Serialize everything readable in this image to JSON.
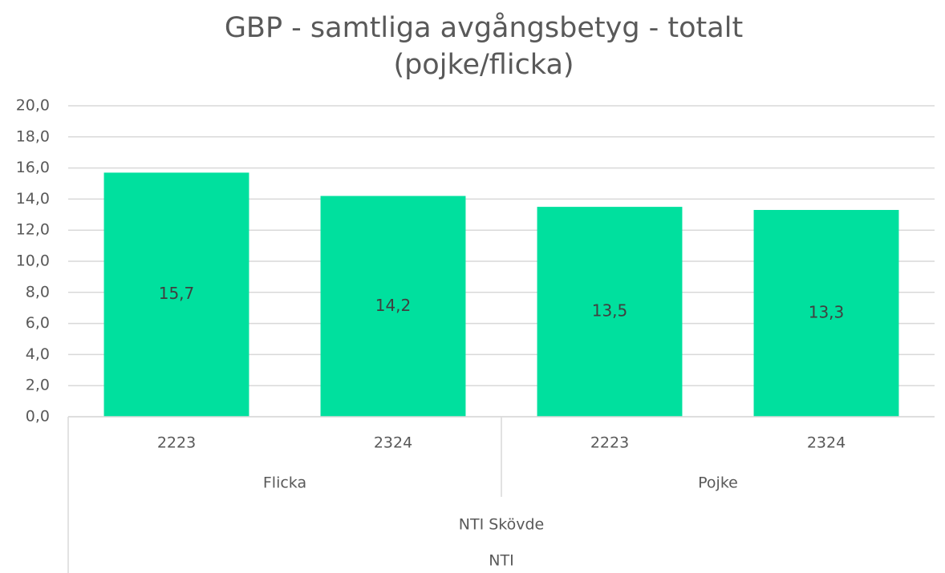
{
  "chart_data": {
    "type": "bar",
    "title": [
      "GBP - samtliga avgångsbetyg - totalt",
      "(pojke/flicka)"
    ],
    "groups": [
      {
        "name": "Flicka",
        "categories": [
          "2223",
          "2324"
        ]
      },
      {
        "name": "Pojke",
        "categories": [
          "2223",
          "2324"
        ]
      }
    ],
    "outer_groups": [
      "NTI Skövde",
      "NTI"
    ],
    "values": [
      15.7,
      14.2,
      13.5,
      13.3
    ],
    "value_labels": [
      "15,7",
      "14,2",
      "13,5",
      "13,3"
    ],
    "color": "#00e09e",
    "ylim": [
      0,
      20
    ],
    "yticks": [
      {
        "value": 0,
        "label": "0,0"
      },
      {
        "value": 2,
        "label": "2,0"
      },
      {
        "value": 4,
        "label": "4,0"
      },
      {
        "value": 6,
        "label": "6,0"
      },
      {
        "value": 8,
        "label": "8,0"
      },
      {
        "value": 10,
        "label": "10,0"
      },
      {
        "value": 12,
        "label": "12,0"
      },
      {
        "value": 14,
        "label": "14,0"
      },
      {
        "value": 16,
        "label": "16,0"
      },
      {
        "value": 18,
        "label": "18,0"
      },
      {
        "value": 20,
        "label": "20,0"
      }
    ],
    "grid": true
  }
}
